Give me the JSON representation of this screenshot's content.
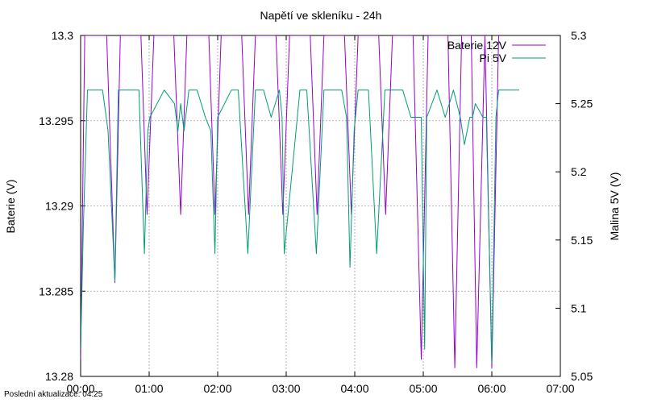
{
  "chart_data": {
    "type": "line",
    "title": "Napětí ve skleníku - 24h",
    "ylabel": "Baterie (V)",
    "y2label": "Malina 5V (V)",
    "xlim": [
      0,
      7
    ],
    "ylim": [
      13.28,
      13.3
    ],
    "y2lim": [
      5.05,
      5.3
    ],
    "x_ticks": [
      "00:00",
      "01:00",
      "02:00",
      "03:00",
      "04:00",
      "05:00",
      "06:00",
      "07:00"
    ],
    "y_ticks": [
      "13.28",
      "13.285",
      "13.29",
      "13.295",
      "13.3"
    ],
    "y2_ticks": [
      "5.05",
      "5.1",
      "5.15",
      "5.2",
      "5.25",
      "5.3"
    ],
    "grid": true,
    "legend_position": "top-right",
    "series": [
      {
        "name": "Baterie 12V",
        "axis": "y",
        "color": "#9400d3",
        "x": [
          0.0,
          0.06,
          0.38,
          0.5,
          0.58,
          0.88,
          0.97,
          1.07,
          1.36,
          1.46,
          1.55,
          1.87,
          1.96,
          2.05,
          2.35,
          2.45,
          2.55,
          2.85,
          2.95,
          3.05,
          3.35,
          3.45,
          3.55,
          3.85,
          3.95,
          4.05,
          4.35,
          4.45,
          4.55,
          4.85,
          4.97,
          5.07,
          5.36,
          5.46,
          5.56,
          5.7,
          5.78,
          5.9,
          6.0,
          6.1
        ],
        "y": [
          13.281,
          13.3,
          13.3,
          13.2855,
          13.3,
          13.3,
          13.2895,
          13.3,
          13.3,
          13.2895,
          13.3,
          13.3,
          13.2895,
          13.3,
          13.3,
          13.2895,
          13.3,
          13.3,
          13.2895,
          13.3,
          13.3,
          13.2895,
          13.3,
          13.3,
          13.2895,
          13.3,
          13.3,
          13.2895,
          13.3,
          13.3,
          13.281,
          13.3,
          13.3,
          13.2805,
          13.3,
          13.3,
          13.2805,
          13.3,
          13.2805,
          13.3
        ]
      },
      {
        "name": "Pi 5V",
        "axis": "y2",
        "color": "#009e73",
        "x": [
          0.0,
          0.04,
          0.1,
          0.32,
          0.4,
          0.5,
          0.55,
          0.85,
          0.93,
          0.98,
          1.01,
          1.22,
          1.37,
          1.42,
          1.46,
          1.51,
          1.58,
          1.7,
          1.82,
          1.9,
          1.96,
          2.0,
          2.2,
          2.3,
          2.44,
          2.55,
          2.67,
          2.78,
          2.9,
          2.94,
          2.97,
          3.2,
          3.3,
          3.44,
          3.55,
          3.7,
          3.81,
          3.88,
          3.93,
          3.99,
          4.05,
          4.2,
          4.32,
          4.44,
          4.55,
          4.7,
          4.82,
          4.97,
          5.02,
          5.05,
          5.2,
          5.32,
          5.44,
          5.54,
          5.6,
          5.68,
          5.72,
          5.76,
          5.87,
          5.92,
          6.0,
          6.06,
          6.1,
          6.4
        ],
        "y": [
          5.07,
          5.16,
          5.26,
          5.26,
          5.23,
          5.12,
          5.26,
          5.26,
          5.14,
          5.23,
          5.24,
          5.26,
          5.25,
          5.23,
          5.25,
          5.23,
          5.26,
          5.26,
          5.24,
          5.23,
          5.14,
          5.24,
          5.26,
          5.26,
          5.14,
          5.26,
          5.26,
          5.24,
          5.26,
          5.24,
          5.14,
          5.26,
          5.26,
          5.14,
          5.26,
          5.26,
          5.26,
          5.24,
          5.13,
          5.23,
          5.26,
          5.26,
          5.14,
          5.26,
          5.26,
          5.26,
          5.24,
          5.24,
          5.07,
          5.24,
          5.26,
          5.24,
          5.26,
          5.24,
          5.22,
          5.24,
          5.24,
          5.25,
          5.24,
          5.24,
          5.06,
          5.24,
          5.26,
          5.26
        ]
      }
    ]
  },
  "footer_text": "Poslední aktualizace: 04:25"
}
